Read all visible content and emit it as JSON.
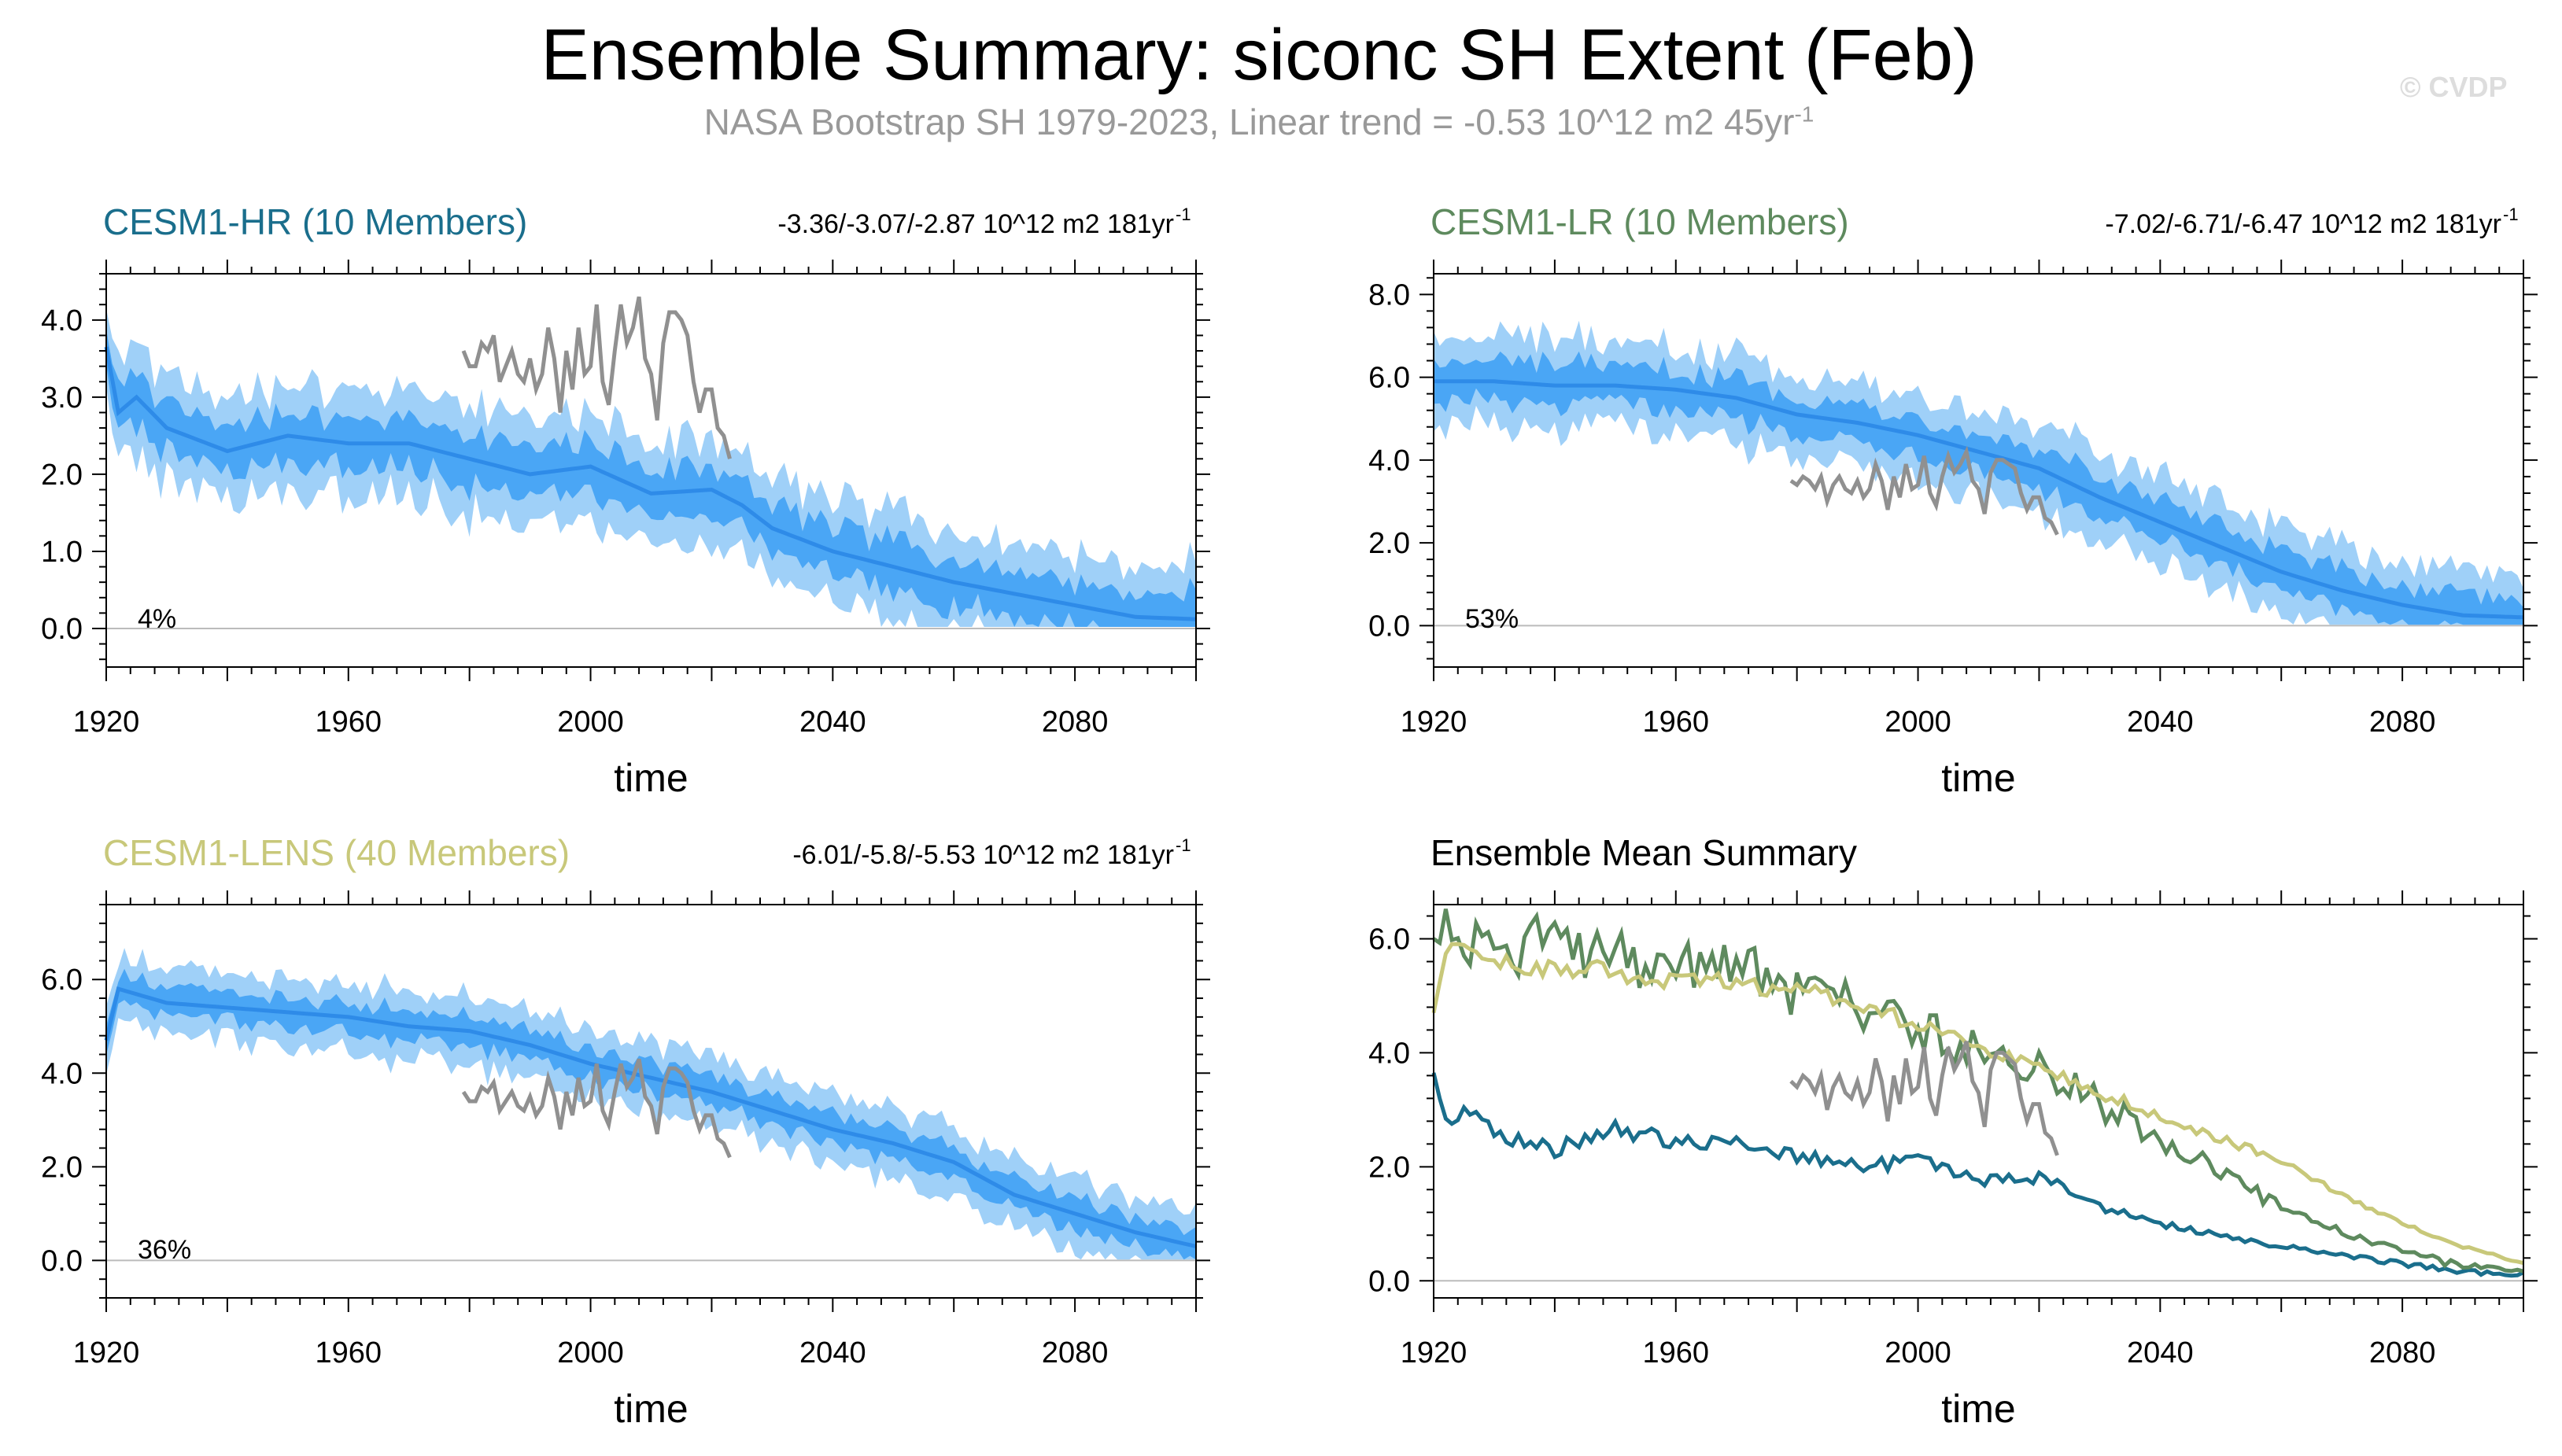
{
  "header": {
    "title": "Ensemble Summary: siconc SH Extent (Feb)",
    "subtitle_main": "NASA Bootstrap SH 1979-2023, Linear trend = -0.53 10^12 m2 45yr",
    "subtitle_sup": "-1",
    "watermark": "© CVDP"
  },
  "colors": {
    "hr": "#1a6e8c",
    "lr": "#5e8a5e",
    "lens": "#c8c87a",
    "band_outer": "#9fd0f8",
    "band_inner": "#4aa6f5",
    "mean": "#2e8be8",
    "obs": "#909090"
  },
  "chart_data": [
    {
      "type": "line",
      "title": "CESM1-HR (10 Members)",
      "title_color": "#1a6e8c",
      "trend_text": "-3.36/-3.07/-2.87 10^12 m2 181yr",
      "trend_sup": "-1",
      "percent": "4%",
      "xlabel": "time",
      "xlim": [
        1920,
        2100
      ],
      "ylim": [
        -0.5,
        4.6
      ],
      "xticks": [
        "1920",
        "1960",
        "2000",
        "2040",
        "2080"
      ],
      "yticks": [
        "0.0",
        "1.0",
        "2.0",
        "3.0",
        "4.0"
      ],
      "mean_anchors": [
        [
          1920,
          3.65
        ],
        [
          1922,
          2.8
        ],
        [
          1925,
          3.0
        ],
        [
          1930,
          2.6
        ],
        [
          1940,
          2.3
        ],
        [
          1950,
          2.5
        ],
        [
          1960,
          2.4
        ],
        [
          1970,
          2.4
        ],
        [
          1980,
          2.2
        ],
        [
          1990,
          2.0
        ],
        [
          2000,
          2.1
        ],
        [
          2010,
          1.75
        ],
        [
          2020,
          1.8
        ],
        [
          2025,
          1.6
        ],
        [
          2030,
          1.3
        ],
        [
          2040,
          1.0
        ],
        [
          2050,
          0.8
        ],
        [
          2060,
          0.6
        ],
        [
          2070,
          0.45
        ],
        [
          2080,
          0.3
        ],
        [
          2090,
          0.15
        ],
        [
          2100,
          0.12
        ]
      ],
      "inner_halfwidth": 0.3,
      "outer_halfwidth": 0.65,
      "obs_x_range": [
        1979,
        2023
      ],
      "obs_values": [
        3.6,
        3.4,
        3.4,
        3.7,
        3.6,
        3.8,
        3.2,
        3.4,
        3.6,
        3.3,
        3.2,
        3.5,
        3.1,
        3.3,
        3.9,
        3.5,
        2.8,
        3.6,
        3.1,
        3.9,
        3.3,
        3.4,
        4.2,
        3.2,
        2.9,
        3.6,
        4.2,
        3.7,
        3.9,
        4.3,
        3.5,
        3.3,
        2.7,
        3.7,
        4.1,
        4.1,
        4.0,
        3.8,
        3.2,
        2.8,
        3.1,
        3.1,
        2.6,
        2.5,
        2.2
      ],
      "ensemble_mean_summary": []
    },
    {
      "type": "line",
      "title": "CESM1-LR (10 Members)",
      "title_color": "#5e8a5e",
      "trend_text": "-7.02/-6.71/-6.47 10^12 m2 181yr",
      "trend_sup": "-1",
      "percent": "53%",
      "xlabel": "time",
      "xlim": [
        1920,
        2100
      ],
      "ylim": [
        -1.0,
        8.5
      ],
      "xticks": [
        "1920",
        "1960",
        "2000",
        "2040",
        "2080"
      ],
      "yticks": [
        "0.0",
        "2.0",
        "4.0",
        "6.0",
        "8.0"
      ],
      "mean_anchors": [
        [
          1920,
          5.9
        ],
        [
          1930,
          5.9
        ],
        [
          1940,
          5.8
        ],
        [
          1950,
          5.8
        ],
        [
          1960,
          5.7
        ],
        [
          1970,
          5.5
        ],
        [
          1980,
          5.1
        ],
        [
          1990,
          4.9
        ],
        [
          2000,
          4.6
        ],
        [
          2010,
          4.2
        ],
        [
          2020,
          3.8
        ],
        [
          2030,
          3.1
        ],
        [
          2040,
          2.5
        ],
        [
          2050,
          1.9
        ],
        [
          2060,
          1.3
        ],
        [
          2070,
          0.85
        ],
        [
          2080,
          0.5
        ],
        [
          2090,
          0.25
        ],
        [
          2100,
          0.2
        ]
      ],
      "inner_halfwidth": 0.45,
      "outer_halfwidth": 1.0,
      "obs_x_range": [
        1979,
        2023
      ],
      "obs_values": [
        3.5,
        3.4,
        3.6,
        3.5,
        3.3,
        3.6,
        3.0,
        3.4,
        3.6,
        3.3,
        3.2,
        3.5,
        3.1,
        3.3,
        3.9,
        3.5,
        2.8,
        3.6,
        3.1,
        3.9,
        3.3,
        3.4,
        4.1,
        3.2,
        2.9,
        3.6,
        4.1,
        3.7,
        3.9,
        4.2,
        3.5,
        3.3,
        2.7,
        3.7,
        4.0,
        4.0,
        3.9,
        3.8,
        3.2,
        2.8,
        3.1,
        3.1,
        2.6,
        2.5,
        2.2
      ],
      "ensemble_mean_summary": []
    },
    {
      "type": "line",
      "title": "CESM1-LENS (40 Members)",
      "title_color": "#c8c87a",
      "trend_text": "-6.01/-5.8/-5.53 10^12 m2 181yr",
      "trend_sup": "-1",
      "percent": "36%",
      "xlabel": "time",
      "xlim": [
        1920,
        2100
      ],
      "ylim": [
        -0.8,
        7.6
      ],
      "xticks": [
        "1920",
        "1960",
        "2000",
        "2040",
        "2080"
      ],
      "yticks": [
        "0.0",
        "2.0",
        "4.0",
        "6.0"
      ],
      "mean_anchors": [
        [
          1920,
          4.7
        ],
        [
          1922,
          5.8
        ],
        [
          1930,
          5.5
        ],
        [
          1940,
          5.4
        ],
        [
          1950,
          5.3
        ],
        [
          1960,
          5.2
        ],
        [
          1970,
          5.0
        ],
        [
          1980,
          4.9
        ],
        [
          1990,
          4.6
        ],
        [
          2000,
          4.2
        ],
        [
          2010,
          3.9
        ],
        [
          2020,
          3.6
        ],
        [
          2030,
          3.2
        ],
        [
          2040,
          2.8
        ],
        [
          2050,
          2.5
        ],
        [
          2060,
          2.1
        ],
        [
          2070,
          1.4
        ],
        [
          2080,
          1.0
        ],
        [
          2090,
          0.6
        ],
        [
          2100,
          0.3
        ]
      ],
      "inner_halfwidth": 0.3,
      "outer_halfwidth": 0.7,
      "obs_x_range": [
        1979,
        2023
      ],
      "obs_values": [
        3.6,
        3.4,
        3.4,
        3.7,
        3.6,
        3.8,
        3.2,
        3.4,
        3.6,
        3.3,
        3.2,
        3.5,
        3.1,
        3.3,
        3.9,
        3.5,
        2.8,
        3.6,
        3.1,
        3.9,
        3.3,
        3.4,
        4.2,
        3.2,
        2.9,
        3.6,
        4.2,
        3.7,
        3.9,
        4.3,
        3.5,
        3.3,
        2.7,
        3.7,
        4.1,
        4.1,
        4.0,
        3.8,
        3.2,
        2.8,
        3.1,
        3.1,
        2.6,
        2.5,
        2.2
      ],
      "ensemble_mean_summary": []
    },
    {
      "type": "line",
      "title": "Ensemble Mean Summary",
      "title_color": "#000000",
      "trend_text": "",
      "trend_sup": "",
      "percent": "",
      "xlabel": "time",
      "xlim": [
        1920,
        2100
      ],
      "ylim": [
        -0.3,
        6.6
      ],
      "xticks": [
        "1920",
        "1960",
        "2000",
        "2040",
        "2080"
      ],
      "yticks": [
        "0.0",
        "2.0",
        "4.0",
        "6.0"
      ],
      "mean_anchors": [],
      "inner_halfwidth": 0,
      "outer_halfwidth": 0,
      "obs_x_range": [
        1979,
        2023
      ],
      "obs_values": [
        3.5,
        3.4,
        3.6,
        3.5,
        3.3,
        3.6,
        3.0,
        3.4,
        3.6,
        3.3,
        3.2,
        3.5,
        3.1,
        3.3,
        3.9,
        3.5,
        2.8,
        3.6,
        3.1,
        3.9,
        3.3,
        3.4,
        4.1,
        3.2,
        2.9,
        3.6,
        4.1,
        3.7,
        3.9,
        4.2,
        3.5,
        3.3,
        2.7,
        3.7,
        4.0,
        4.0,
        3.9,
        3.8,
        3.2,
        2.8,
        3.1,
        3.1,
        2.6,
        2.5,
        2.2
      ],
      "ensemble_mean_summary": [
        {
          "name": "CESM1-HR",
          "color": "#1a6e8c",
          "noise": 0.18,
          "anchors": [
            [
              1920,
              3.65
            ],
            [
              1922,
              2.8
            ],
            [
              1925,
              3.0
            ],
            [
              1930,
              2.6
            ],
            [
              1940,
              2.3
            ],
            [
              1950,
              2.7
            ],
            [
              1960,
              2.4
            ],
            [
              1970,
              2.5
            ],
            [
              1980,
              2.2
            ],
            [
              1990,
              2.0
            ],
            [
              2000,
              2.1
            ],
            [
              2010,
              1.75
            ],
            [
              2020,
              1.8
            ],
            [
              2025,
              1.6
            ],
            [
              2030,
              1.3
            ],
            [
              2040,
              1.0
            ],
            [
              2050,
              0.8
            ],
            [
              2060,
              0.6
            ],
            [
              2070,
              0.45
            ],
            [
              2080,
              0.3
            ],
            [
              2090,
              0.15
            ],
            [
              2100,
              0.12
            ]
          ]
        },
        {
          "name": "CESM1-LR",
          "color": "#5e8a5e",
          "noise": 0.28,
          "anchors": [
            [
              1920,
              6.0
            ],
            [
              1930,
              5.9
            ],
            [
              1940,
              5.9
            ],
            [
              1950,
              5.7
            ],
            [
              1960,
              5.6
            ],
            [
              1970,
              5.5
            ],
            [
              1980,
              5.0
            ],
            [
              1990,
              4.8
            ],
            [
              2000,
              4.4
            ],
            [
              2010,
              4.0
            ],
            [
              2020,
              3.7
            ],
            [
              2030,
              3.1
            ],
            [
              2040,
              2.5
            ],
            [
              2050,
              1.9
            ],
            [
              2060,
              1.3
            ],
            [
              2070,
              0.85
            ],
            [
              2080,
              0.5
            ],
            [
              2090,
              0.25
            ],
            [
              2100,
              0.2
            ]
          ]
        },
        {
          "name": "CESM1-LENS",
          "color": "#c8c87a",
          "noise": 0.1,
          "anchors": [
            [
              1920,
              4.7
            ],
            [
              1922,
              5.8
            ],
            [
              1930,
              5.6
            ],
            [
              1940,
              5.5
            ],
            [
              1950,
              5.4
            ],
            [
              1960,
              5.3
            ],
            [
              1970,
              5.2
            ],
            [
              1980,
              5.1
            ],
            [
              1990,
              4.9
            ],
            [
              2000,
              4.5
            ],
            [
              2010,
              4.1
            ],
            [
              2020,
              3.7
            ],
            [
              2030,
              3.3
            ],
            [
              2040,
              2.9
            ],
            [
              2050,
              2.5
            ],
            [
              2060,
              2.1
            ],
            [
              2070,
              1.5
            ],
            [
              2080,
              1.0
            ],
            [
              2090,
              0.6
            ],
            [
              2100,
              0.3
            ]
          ]
        }
      ]
    }
  ]
}
